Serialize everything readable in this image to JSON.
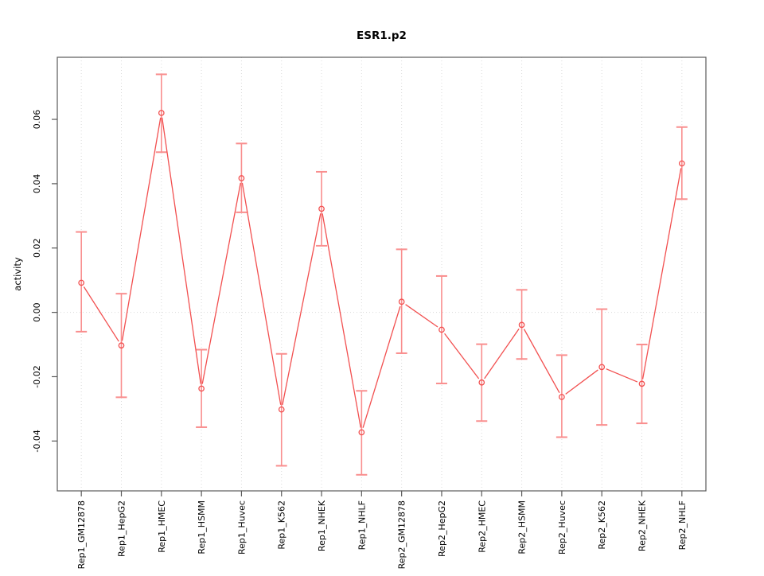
{
  "chart_data": {
    "type": "line",
    "title": "ESR1.p2",
    "xlabel": "",
    "ylabel": "activity",
    "legend": "none",
    "grid": "dotted vertical line at each category; dotted horizontal line at y=0",
    "marker": "open-circle",
    "categories": [
      "Rep1_GM12878",
      "Rep1_HepG2",
      "Rep1_HMEC",
      "Rep1_HSMM",
      "Rep1_Huvec",
      "Rep1_K562",
      "Rep1_NHEK",
      "Rep1_NHLF",
      "Rep2_GM12878",
      "Rep2_HepG2",
      "Rep2_HMEC",
      "Rep2_HSMM",
      "Rep2_Huvec",
      "Rep2_K562",
      "Rep2_NHEK",
      "Rep2_NHLF"
    ],
    "series": [
      {
        "name": "activity",
        "values": [
          0.0092,
          -0.0103,
          0.062,
          -0.0237,
          0.0417,
          -0.0302,
          0.0322,
          -0.0373,
          0.0033,
          -0.0054,
          -0.0218,
          -0.0039,
          -0.0263,
          -0.017,
          -0.0222,
          0.0463
        ],
        "error_low": [
          -0.006,
          -0.0264,
          0.0498,
          -0.0357,
          0.0311,
          -0.0477,
          0.0207,
          -0.0505,
          -0.0127,
          -0.0221,
          -0.0338,
          -0.0145,
          -0.0388,
          -0.035,
          -0.0345,
          0.0352
        ],
        "error_high": [
          0.025,
          0.0058,
          0.074,
          -0.0116,
          0.0525,
          -0.0129,
          0.0437,
          -0.0244,
          0.0196,
          0.0113,
          -0.0099,
          0.007,
          -0.0133,
          0.001,
          -0.01,
          0.0576
        ]
      }
    ],
    "yticks": [
      -0.04,
      -0.02,
      0.0,
      0.02,
      0.04,
      0.06
    ],
    "ytick_labels": [
      "-0.04",
      "-0.02",
      "0.00",
      "0.02",
      "0.04",
      "0.06"
    ],
    "ylim": [
      -0.0555,
      0.0793
    ],
    "colors": {
      "line": "#f25050",
      "marker": "#f25050",
      "error_bar": "#f98e8e",
      "grid": "#dadada",
      "box": "#5a5a5a",
      "text": "#000000"
    }
  }
}
